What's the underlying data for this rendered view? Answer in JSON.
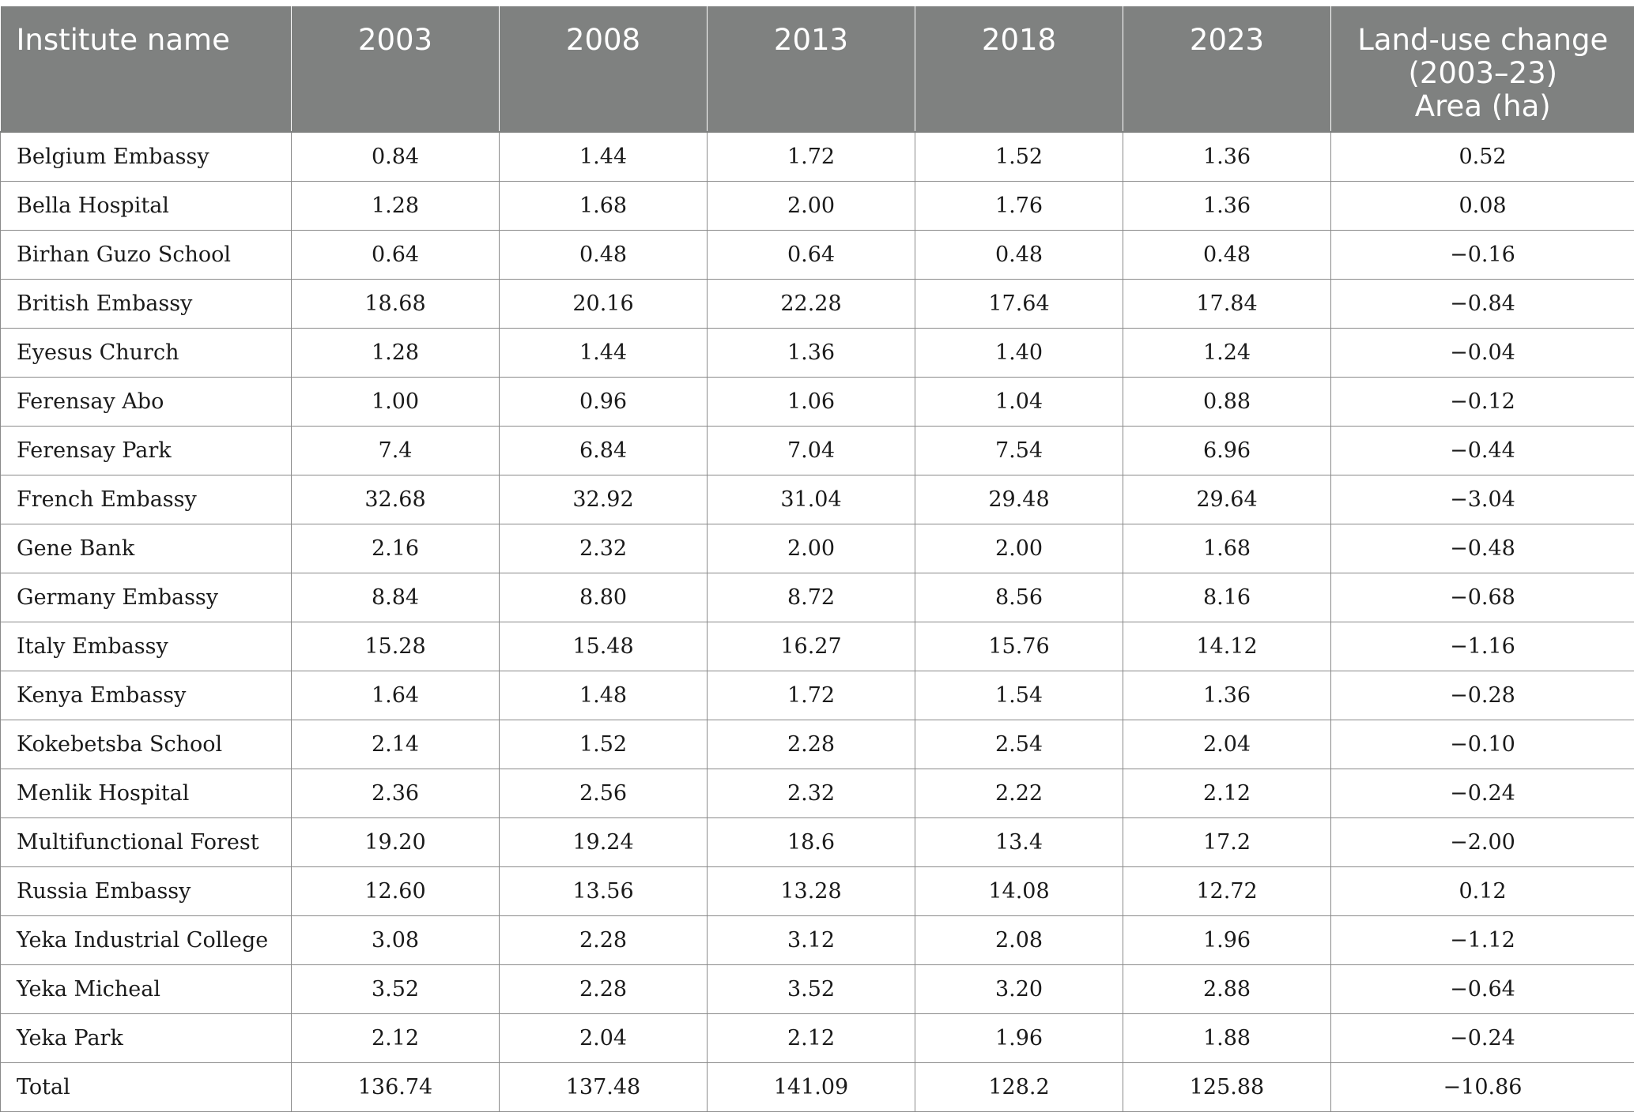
{
  "table": {
    "headers": [
      "Institute name",
      "2003",
      "2008",
      "2013",
      "2018",
      "2023",
      "Land-use change (2003–23) Area (ha)"
    ],
    "header_last_lines": [
      "Land-use change",
      "(2003–23)",
      "Area (ha)"
    ],
    "rows": [
      [
        "Belgium Embassy",
        "0.84",
        "1.44",
        "1.72",
        "1.52",
        "1.36",
        "0.52"
      ],
      [
        "Bella Hospital",
        "1.28",
        "1.68",
        "2.00",
        "1.76",
        "1.36",
        "0.08"
      ],
      [
        "Birhan Guzo School",
        "0.64",
        "0.48",
        "0.64",
        "0.48",
        "0.48",
        "−0.16"
      ],
      [
        "British Embassy",
        "18.68",
        "20.16",
        "22.28",
        "17.64",
        "17.84",
        "−0.84"
      ],
      [
        "Eyesus Church",
        "1.28",
        "1.44",
        "1.36",
        "1.40",
        "1.24",
        "−0.04"
      ],
      [
        "Ferensay Abo",
        "1.00",
        "0.96",
        "1.06",
        "1.04",
        "0.88",
        "−0.12"
      ],
      [
        "Ferensay Park",
        "7.4",
        "6.84",
        "7.04",
        "7.54",
        "6.96",
        "−0.44"
      ],
      [
        "French Embassy",
        "32.68",
        "32.92",
        "31.04",
        "29.48",
        "29.64",
        "−3.04"
      ],
      [
        "Gene Bank",
        "2.16",
        "2.32",
        "2.00",
        "2.00",
        "1.68",
        "−0.48"
      ],
      [
        "Germany Embassy",
        "8.84",
        "8.80",
        "8.72",
        "8.56",
        "8.16",
        "−0.68"
      ],
      [
        "Italy Embassy",
        "15.28",
        "15.48",
        "16.27",
        "15.76",
        "14.12",
        "−1.16"
      ],
      [
        "Kenya Embassy",
        "1.64",
        "1.48",
        "1.72",
        "1.54",
        "1.36",
        "−0.28"
      ],
      [
        "Kokebetsba School",
        "2.14",
        "1.52",
        "2.28",
        "2.54",
        "2.04",
        "−0.10"
      ],
      [
        "Menlik Hospital",
        "2.36",
        "2.56",
        "2.32",
        "2.22",
        "2.12",
        "−0.24"
      ],
      [
        "Multifunctional Forest",
        "19.20",
        "19.24",
        "18.6",
        "13.4",
        "17.2",
        "−2.00"
      ],
      [
        "Russia Embassy",
        "12.60",
        "13.56",
        "13.28",
        "14.08",
        "12.72",
        "0.12"
      ],
      [
        "Yeka Industrial College",
        "3.08",
        "2.28",
        "3.12",
        "2.08",
        "1.96",
        "−1.12"
      ],
      [
        "Yeka Micheal",
        "3.52",
        "2.28",
        "3.52",
        "3.20",
        "2.88",
        "−0.64"
      ],
      [
        "Yeka Park",
        "2.12",
        "2.04",
        "2.12",
        "1.96",
        "1.88",
        "−0.24"
      ],
      [
        "Total",
        "136.74",
        "137.48",
        "141.09",
        "128.2",
        "125.88",
        "−10.86"
      ]
    ]
  },
  "colors": {
    "header_bg": "#7f8180",
    "header_text": "#ffffff",
    "border": "#8a8a8a",
    "body_text": "#1a1a1a"
  }
}
